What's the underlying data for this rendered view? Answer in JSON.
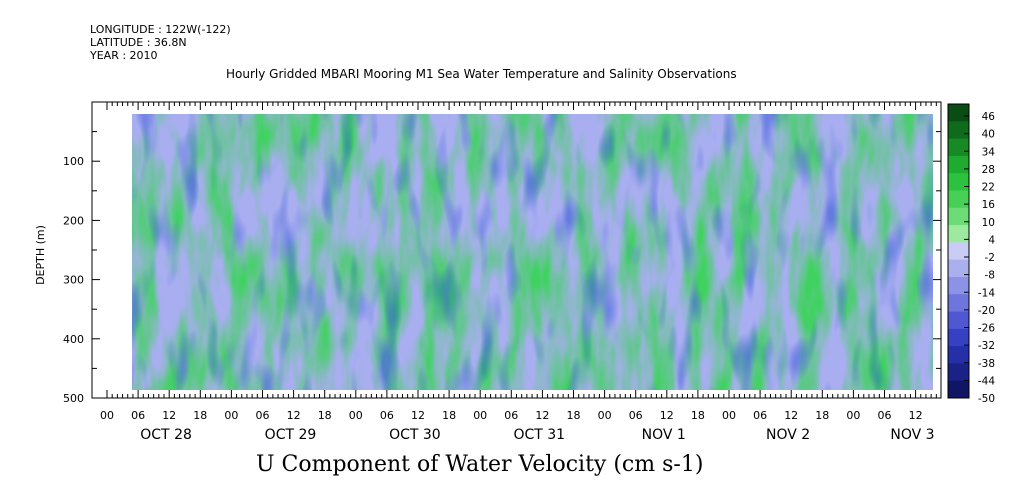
{
  "meta": {
    "longitude": "LONGITUDE : 122W(-122)",
    "latitude": "LATITUDE : 36.8N",
    "year": "YEAR : 2010"
  },
  "chart_data": {
    "type": "heatmap",
    "title": "Hourly Gridded MBARI Mooring M1 Sea Water Temperature and Salinity Observations",
    "xlabel": "U Component of Water Velocity (cm s-1)",
    "ylabel": "DEPTH (m)",
    "y_reversed": true,
    "ylim": [
      500,
      0
    ],
    "y_ticks": [
      100,
      200,
      300,
      400,
      500
    ],
    "x_hour_ticks": [
      "00",
      "06",
      "12",
      "18",
      "00",
      "06",
      "12",
      "18",
      "00",
      "06",
      "12",
      "18",
      "00",
      "06",
      "12",
      "18",
      "00",
      "06",
      "12",
      "18",
      "00",
      "06",
      "12",
      "18",
      "00",
      "06",
      "12"
    ],
    "x_day_labels": [
      "OCT 28",
      "OCT 29",
      "OCT 30",
      "OCT 31",
      "NOV  1",
      "NOV  2",
      "NOV  3"
    ],
    "colorbar_labels": [
      "46",
      "40",
      "34",
      "28",
      "22",
      "16",
      "10",
      "4",
      "-2",
      "-8",
      "-14",
      "-20",
      "-26",
      "-32",
      "-38",
      "-44",
      "-50"
    ],
    "colorbar_colors": [
      "#0a4d14",
      "#0f6b1c",
      "#178a25",
      "#1faa30",
      "#2cc23f",
      "#47cf56",
      "#6ddc77",
      "#9ee9a0",
      "#c9ccf4",
      "#aab0ee",
      "#8c93e6",
      "#6e76dd",
      "#4f58d2",
      "#3540c3",
      "#2530a8",
      "#1a2288",
      "#101565"
    ],
    "series": []
  }
}
